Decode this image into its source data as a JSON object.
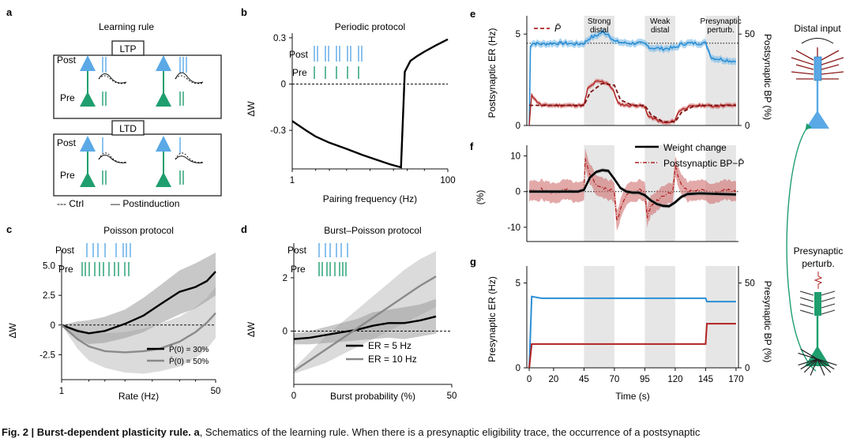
{
  "panel_labels": [
    "a",
    "b",
    "c",
    "d",
    "e",
    "f",
    "g"
  ],
  "panel_a": {
    "title": "Learning rule",
    "ltp_label": "LTP",
    "ltd_label": "LTD",
    "post_label": "Post",
    "pre_label": "Pre",
    "legend_ctrl": "--- Ctrl",
    "legend_post": "— Postinduction",
    "colors": {
      "post": "#5aa9e6",
      "pre": "#1f9e6e"
    }
  },
  "caption": {
    "bold": "Fig. 2 | Burst-dependent plasticity rule. a",
    "text": ", Schematics of the learning rule. When there is a presynaptic eligibility trace, the occurrence of a postsynaptic"
  },
  "schematic": {
    "distal_input": "Distal input",
    "presynaptic_perturb_line1": "Presynaptic",
    "presynaptic_perturb_line2": "perturb."
  },
  "chart_data": [
    {
      "id": "b",
      "type": "line",
      "title": "Periodic protocol",
      "xlabel": "Pairing frequency (Hz)",
      "ylabel": "ΔW",
      "xscale": "log",
      "xlim": [
        1,
        100
      ],
      "ylim": [
        -0.55,
        0.33
      ],
      "xticks": [
        "1",
        "100"
      ],
      "yticks": [
        "0.3",
        "0",
        "-0.3"
      ],
      "raster_labels": [
        "Post",
        "Pre"
      ],
      "series": [
        {
          "color": "#000000",
          "x": [
            1,
            1.5,
            2,
            3,
            5,
            8,
            12,
            18,
            25,
            28,
            33,
            40,
            50,
            70,
            100
          ],
          "y": [
            -0.24,
            -0.3,
            -0.34,
            -0.38,
            -0.42,
            -0.46,
            -0.49,
            -0.52,
            -0.54,
            0.08,
            0.15,
            0.18,
            0.21,
            0.25,
            0.29
          ]
        }
      ],
      "zero_line": true
    },
    {
      "id": "c",
      "type": "line",
      "title": "Poisson protocol",
      "xlabel": "Rate (Hz)",
      "ylabel": "ΔW",
      "xscale": "log",
      "xlim": [
        1,
        50
      ],
      "ylim": [
        -4.6,
        6.3
      ],
      "xticks": [
        "1",
        "50"
      ],
      "yticks": [
        "5.0",
        "2.5",
        "0",
        "-2.5"
      ],
      "raster_labels": [
        "Post",
        "Pre"
      ],
      "series": [
        {
          "name": "P̄(0) = 30%",
          "color": "#000000",
          "x": [
            1,
            1.5,
            2,
            3,
            5,
            8,
            12,
            20,
            30,
            40,
            50
          ],
          "y": [
            0,
            -0.5,
            -0.7,
            -0.5,
            0.1,
            0.8,
            1.7,
            2.8,
            3.2,
            3.7,
            4.5
          ],
          "lower": [
            0,
            -1.2,
            -1.6,
            -1.5,
            -1.1,
            -0.6,
            0.1,
            0.9,
            1.4,
            2.0,
            2.5
          ],
          "upper": [
            0,
            0.3,
            0.4,
            0.7,
            1.3,
            2.3,
            3.3,
            4.6,
            5.2,
            5.7,
            6.1
          ]
        },
        {
          "name": "P̄(0) = 50%",
          "color": "#8a8a8a",
          "x": [
            1,
            1.5,
            2,
            3,
            5,
            8,
            12,
            20,
            30,
            40,
            50
          ],
          "y": [
            0,
            -1.2,
            -1.8,
            -2.2,
            -2.3,
            -2.2,
            -2.0,
            -1.4,
            -0.6,
            0.2,
            1.0
          ],
          "lower": [
            0,
            -2.0,
            -3.0,
            -3.6,
            -4.0,
            -4.1,
            -3.9,
            -3.5,
            -2.8,
            -2.0,
            -1.1
          ],
          "upper": [
            0,
            -0.3,
            -0.6,
            -0.7,
            -0.6,
            -0.3,
            0.1,
            0.7,
            1.5,
            2.3,
            3.2
          ]
        }
      ],
      "zero_line": true,
      "legend": "bottom-right"
    },
    {
      "id": "d",
      "type": "line",
      "title": "Burst–Poisson protocol",
      "xlabel": "Burst probability (%)",
      "ylabel": "ΔW",
      "xlim": [
        0,
        50
      ],
      "ylim": [
        -2.0,
        3.3
      ],
      "xticks": [
        "0",
        "50"
      ],
      "yticks": [
        "2",
        "0"
      ],
      "raster_labels": [
        "Post",
        "Pre"
      ],
      "series": [
        {
          "name": "ER = 5 Hz",
          "color": "#000000",
          "x": [
            0,
            5,
            10,
            15,
            20,
            25,
            30,
            35,
            40,
            45
          ],
          "y": [
            -0.3,
            -0.25,
            -0.15,
            -0.05,
            0.05,
            0.2,
            0.3,
            0.3,
            0.4,
            0.55
          ],
          "lower": [
            -0.5,
            -0.5,
            -0.45,
            -0.4,
            -0.35,
            -0.3,
            -0.25,
            -0.3,
            -0.2,
            -0.1
          ],
          "upper": [
            -0.1,
            0.0,
            0.15,
            0.3,
            0.45,
            0.7,
            0.8,
            0.9,
            1.0,
            1.2
          ]
        },
        {
          "name": "ER = 10 Hz",
          "color": "#8a8a8a",
          "x": [
            0,
            5,
            10,
            15,
            20,
            25,
            30,
            35,
            40,
            45
          ],
          "y": [
            -1.5,
            -1.1,
            -0.7,
            -0.3,
            0.1,
            0.5,
            0.9,
            1.3,
            1.7,
            2.05
          ],
          "lower": [
            -1.6,
            -1.4,
            -1.2,
            -0.9,
            -0.6,
            -0.3,
            0.0,
            0.3,
            0.6,
            0.9
          ],
          "upper": [
            -1.4,
            -0.8,
            -0.2,
            0.3,
            0.8,
            1.3,
            1.8,
            2.3,
            2.7,
            3.0
          ]
        }
      ],
      "zero_line": true,
      "legend": "bottom-right"
    },
    {
      "id": "e",
      "type": "line",
      "xlabel": "",
      "ylabel": "Postsynaptic ER (Hz)",
      "ylabel_right": "Postsynaptic BP (%)",
      "xlim": [
        -2,
        172
      ],
      "ylim": [
        0,
        6
      ],
      "ylim_right": [
        0,
        60
      ],
      "yticks": [
        "0",
        "5"
      ],
      "yticks_right": [
        "0",
        "50"
      ],
      "shaded_regions": [
        [
          45,
          70
        ],
        [
          95,
          120
        ],
        [
          145,
          170
        ]
      ],
      "region_labels": [
        "Strong\ndistal",
        "Weak\ndistal",
        "Presynaptic\nperturb."
      ],
      "legend_label": "P̄",
      "dotted_level": 4.5,
      "series": [
        {
          "name": "ER",
          "color": "#2a8fd6",
          "x": [
            0,
            1,
            3,
            10,
            20,
            30,
            40,
            45,
            50,
            55,
            60,
            65,
            70,
            75,
            80,
            90,
            95,
            100,
            110,
            120,
            125,
            130,
            140,
            145,
            150,
            160,
            170
          ],
          "y": [
            0,
            4.4,
            4.5,
            4.45,
            4.5,
            4.5,
            4.45,
            4.5,
            4.8,
            4.9,
            5.1,
            5.0,
            4.6,
            4.55,
            4.5,
            4.5,
            4.45,
            4.25,
            4.2,
            4.25,
            4.45,
            4.5,
            4.5,
            4.5,
            3.7,
            3.6,
            3.5
          ]
        },
        {
          "name": "BP",
          "color": "#b22222",
          "x": [
            0,
            2,
            5,
            10,
            20,
            30,
            40,
            45,
            48,
            55,
            60,
            65,
            70,
            73,
            80,
            90,
            95,
            98,
            105,
            110,
            115,
            120,
            123,
            130,
            140,
            145,
            150,
            160,
            170
          ],
          "y": [
            0,
            17,
            14,
            11,
            11,
            11,
            11,
            11,
            20,
            24,
            24,
            23,
            18,
            12,
            11,
            11,
            10,
            5,
            3,
            1.5,
            1.5,
            3,
            8,
            10,
            11,
            11,
            10.5,
            11,
            11
          ]
        },
        {
          "name": "P̄",
          "color": "#b22222",
          "dashed": true,
          "x": [
            0,
            5,
            20,
            40,
            45,
            50,
            60,
            70,
            75,
            85,
            95,
            100,
            110,
            120,
            125,
            135,
            145,
            155,
            170
          ],
          "y": [
            11,
            11,
            11,
            11,
            11,
            18,
            23,
            22,
            14,
            11,
            11,
            6,
            2,
            2,
            7,
            10.5,
            11,
            11,
            11
          ]
        }
      ]
    },
    {
      "id": "f",
      "type": "line",
      "ylabel": "(%)",
      "xlim": [
        -2,
        172
      ],
      "ylim": [
        -14,
        13
      ],
      "yticks": [
        "10",
        "0",
        "-10"
      ],
      "shaded_regions": [
        [
          45,
          70
        ],
        [
          95,
          120
        ],
        [
          145,
          170
        ]
      ],
      "legend": "top-right",
      "series": [
        {
          "name": "Weight change",
          "color": "#000000",
          "x": [
            0,
            10,
            20,
            30,
            40,
            45,
            50,
            55,
            60,
            65,
            70,
            75,
            80,
            85,
            90,
            95,
            100,
            105,
            110,
            115,
            120,
            125,
            130,
            140,
            150,
            160,
            170
          ],
          "y": [
            0,
            0,
            0,
            0,
            0,
            0.5,
            4,
            5.5,
            6,
            5.8,
            3.5,
            1,
            0,
            -0.3,
            -0.3,
            -1,
            -2.5,
            -3.5,
            -4,
            -4.1,
            -3,
            -1.5,
            -0.7,
            -0.5,
            -0.6,
            -0.7,
            -0.8
          ]
        },
        {
          "name": "Postsynaptic BP−P̄",
          "color": "#b22222",
          "dashed": true,
          "x": [
            0,
            10,
            20,
            30,
            40,
            45,
            46,
            50,
            55,
            60,
            65,
            70,
            72,
            75,
            80,
            85,
            90,
            95,
            97,
            100,
            110,
            118,
            120,
            122,
            125,
            130,
            140,
            150,
            160,
            170
          ],
          "y": [
            0,
            0.5,
            -0.5,
            0.5,
            -0.5,
            0,
            9,
            5,
            2,
            1,
            0.5,
            0,
            -8,
            -5,
            -1,
            0,
            0.5,
            0,
            -7,
            -4,
            -1,
            0,
            7,
            5,
            2,
            0,
            0.5,
            -0.5,
            0.5,
            0
          ]
        }
      ]
    },
    {
      "id": "g",
      "type": "line",
      "xlabel": "Time (s)",
      "ylabel": "Presynaptic ER (Hz)",
      "ylabel_right": "Presynaptic BP (%)",
      "xlim": [
        -2,
        172
      ],
      "ylim": [
        0,
        6
      ],
      "ylim_right": [
        0,
        60
      ],
      "xticks": [
        "0",
        "20",
        "45",
        "70",
        "95",
        "120",
        "145",
        "170"
      ],
      "yticks": [
        "0",
        "5"
      ],
      "yticks_right": [
        "0",
        "50"
      ],
      "shaded_regions": [
        [
          45,
          70
        ],
        [
          95,
          120
        ],
        [
          145,
          170
        ]
      ],
      "series": [
        {
          "name": "ER",
          "color": "#2a8fd6",
          "x": [
            0,
            2,
            10,
            145,
            146,
            170
          ],
          "y": [
            0,
            4.2,
            4.1,
            4.1,
            3.9,
            3.9
          ]
        },
        {
          "name": "BP",
          "color": "#b22222",
          "x": [
            0,
            2,
            10,
            145,
            146,
            170
          ],
          "y": [
            0,
            14,
            14,
            14,
            26,
            26
          ]
        }
      ]
    }
  ]
}
